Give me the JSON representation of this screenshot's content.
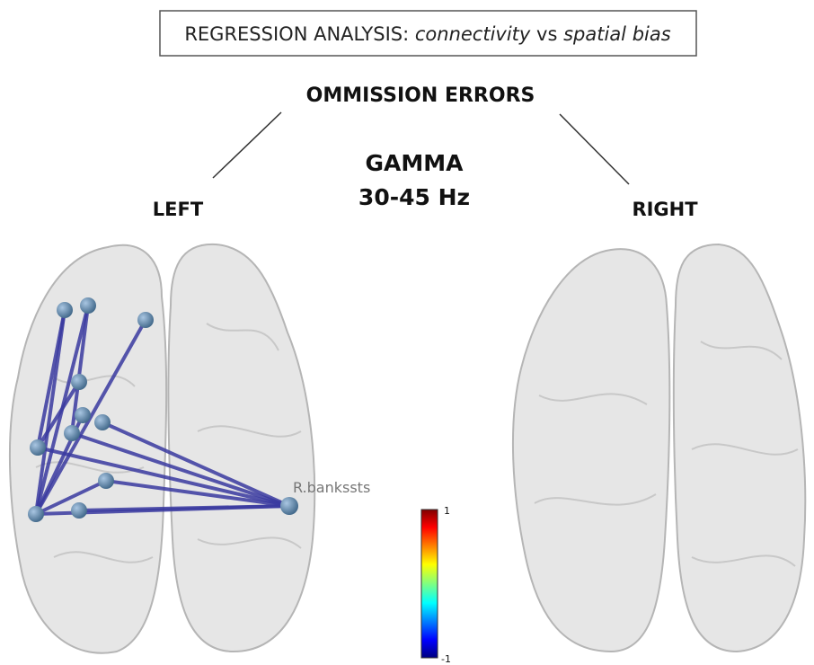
{
  "figure": {
    "title": {
      "prefix": "REGRESSION ANALYSIS:",
      "term1": "connectivity",
      "middle": "vs",
      "term2": "spatial bias"
    },
    "header": "OMMISSION ERRORS",
    "band": "GAMMA",
    "frequency": "30-45 Hz",
    "left_label": "LEFT",
    "right_label": "RIGHT",
    "node_label": "R.bankssts",
    "colorbar": {
      "max_label": "1",
      "min_label": "-1"
    }
  }
}
